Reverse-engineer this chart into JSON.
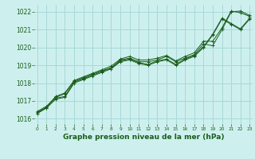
{
  "title": "Graphe pression niveau de la mer (hPa)",
  "bg_color": "#cdf0ee",
  "grid_color": "#a8d8d8",
  "line_color": "#1a5c1a",
  "marker_color": "#1a5c1a",
  "xlim": [
    -0.3,
    23.3
  ],
  "ylim": [
    1015.7,
    1022.4
  ],
  "yticks": [
    1016,
    1017,
    1018,
    1019,
    1020,
    1021,
    1022
  ],
  "xticks": [
    0,
    1,
    2,
    3,
    4,
    5,
    6,
    7,
    8,
    9,
    10,
    11,
    12,
    13,
    14,
    15,
    16,
    17,
    18,
    19,
    20,
    21,
    22,
    23
  ],
  "xlabel_fontsize": 6.5,
  "ytick_fontsize": 5.5,
  "xtick_fontsize": 4.2,
  "series": [
    [
      1016.4,
      1016.7,
      1017.2,
      1017.4,
      1018.1,
      1018.3,
      1018.5,
      1018.7,
      1018.85,
      1019.3,
      1019.4,
      1019.2,
      1019.2,
      1019.3,
      1019.5,
      1019.2,
      1019.4,
      1019.6,
      1020.2,
      1020.1,
      1021.0,
      1022.0,
      1022.05,
      1021.8
    ],
    [
      1016.35,
      1016.65,
      1017.25,
      1017.45,
      1018.15,
      1018.35,
      1018.55,
      1018.75,
      1018.95,
      1019.35,
      1019.5,
      1019.3,
      1019.3,
      1019.4,
      1019.55,
      1019.25,
      1019.5,
      1019.7,
      1020.35,
      1020.35,
      1021.1,
      1022.05,
      1021.95,
      1021.75
    ],
    [
      1016.3,
      1016.6,
      1017.1,
      1017.2,
      1018.0,
      1018.2,
      1018.4,
      1018.6,
      1018.8,
      1019.2,
      1019.3,
      1019.1,
      1019.0,
      1019.2,
      1019.3,
      1019.0,
      1019.3,
      1019.5,
      1020.0,
      1020.7,
      1021.6,
      1021.3,
      1021.0,
      1021.6
    ],
    [
      1016.3,
      1016.6,
      1017.15,
      1017.25,
      1018.05,
      1018.25,
      1018.45,
      1018.65,
      1018.85,
      1019.25,
      1019.35,
      1019.15,
      1019.05,
      1019.25,
      1019.35,
      1019.05,
      1019.35,
      1019.55,
      1020.05,
      1020.75,
      1021.65,
      1021.35,
      1021.05,
      1021.65
    ]
  ]
}
